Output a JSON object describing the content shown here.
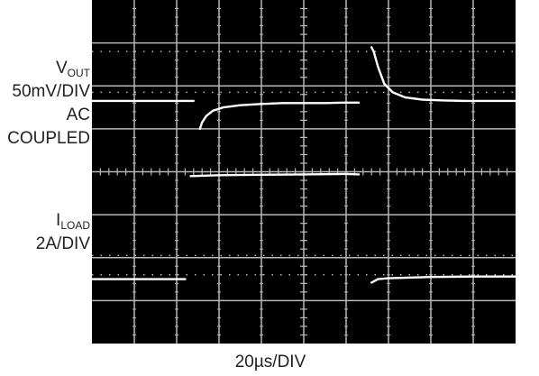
{
  "chart_data": {
    "type": "line",
    "title": "",
    "xlabel": "20µs/DIV",
    "ylabel": "",
    "x_divisions": 10,
    "y_divisions": 8,
    "x_range_div": [
      0,
      10
    ],
    "grid": true,
    "legend": "none",
    "channel_labels": [
      {
        "name": "V",
        "subscript": "OUT",
        "scale": "50mV/DIV",
        "coupling": [
          "AC",
          "COUPLED"
        ]
      },
      {
        "name": "I",
        "subscript": "LOAD",
        "scale": "2A/DIV"
      }
    ],
    "series": [
      {
        "name": "VOUT",
        "unit": "div",
        "segments": [
          {
            "x": [
              0.0,
              1.0,
              2.2,
              2.4
            ],
            "y": [
              5.65,
              5.65,
              5.65,
              5.65
            ]
          },
          {
            "x": [
              2.55,
              2.6,
              2.7,
              2.85,
              3.1,
              3.5,
              4.0,
              4.5,
              5.0,
              5.5,
              6.0,
              6.3
            ],
            "y": [
              5.0,
              5.15,
              5.3,
              5.42,
              5.5,
              5.55,
              5.58,
              5.6,
              5.6,
              5.6,
              5.61,
              5.61
            ]
          },
          {
            "x": [
              6.6,
              6.65,
              6.75,
              6.9,
              7.1,
              7.4,
              7.8,
              8.3,
              8.8,
              9.3,
              10.0
            ],
            "y": [
              6.9,
              6.8,
              6.45,
              6.05,
              5.85,
              5.73,
              5.68,
              5.66,
              5.65,
              5.65,
              5.65
            ]
          }
        ]
      },
      {
        "name": "ILOAD",
        "unit": "div",
        "segments": [
          {
            "x": [
              0.0,
              1.0,
              2.2
            ],
            "y": [
              1.5,
              1.5,
              1.5
            ]
          },
          {
            "x": [
              2.33,
              3.0,
              4.0,
              5.0,
              6.0,
              6.3
            ],
            "y": [
              3.9,
              3.92,
              3.93,
              3.94,
              3.95,
              3.94
            ]
          },
          {
            "x": [
              6.6,
              6.75,
              7.0,
              8.0,
              9.0,
              10.0
            ],
            "y": [
              1.42,
              1.5,
              1.52,
              1.55,
              1.56,
              1.56
            ]
          }
        ]
      }
    ],
    "dotted_lines_y_div": [
      6.8,
      5.85,
      2.05,
      1.6
    ]
  },
  "colors": {
    "trace": "#ffffff",
    "grid": "#b8b8b8",
    "screen": "#000000",
    "text": "#231f20"
  }
}
